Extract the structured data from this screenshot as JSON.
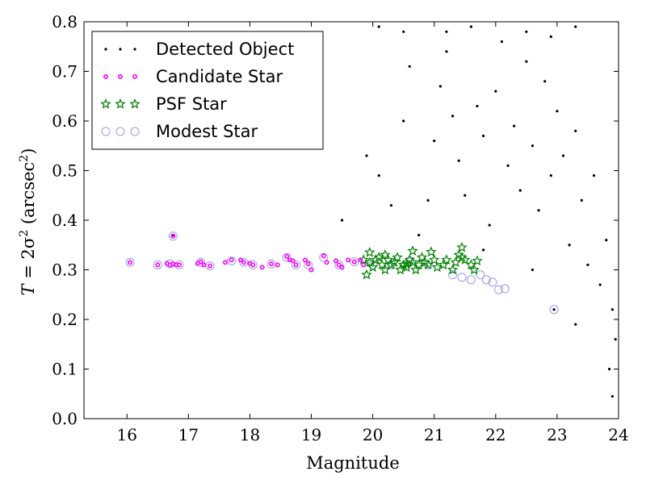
{
  "chart_data": {
    "type": "scatter",
    "xlabel": "Magnitude",
    "ylabel_main": "T",
    "ylabel_eq": " = 2σ",
    "ylabel_sup": "2",
    "ylabel_unit_open": " (arcsec",
    "ylabel_unit_sup": "2",
    "ylabel_unit_close": ")",
    "xlim": [
      15.3,
      24
    ],
    "ylim": [
      0.0,
      0.8
    ],
    "xticks": [
      16,
      17,
      18,
      19,
      20,
      21,
      22,
      23,
      24
    ],
    "yticks": [
      0.0,
      0.1,
      0.2,
      0.3,
      0.4,
      0.5,
      0.6,
      0.7,
      0.8
    ],
    "xtick_labels": [
      "16",
      "17",
      "18",
      "19",
      "20",
      "21",
      "22",
      "23",
      "24"
    ],
    "ytick_labels": [
      "0.0",
      "0.1",
      "0.2",
      "0.3",
      "0.4",
      "0.5",
      "0.6",
      "0.7",
      "0.8"
    ],
    "grid": false,
    "legend_position": "top-left",
    "series": [
      {
        "name": "Detected Object",
        "marker": "dot",
        "color": "#000000",
        "points": [
          [
            16.75,
            0.37
          ],
          [
            19.5,
            0.4
          ],
          [
            20.5,
            0.6
          ],
          [
            19.9,
            0.53
          ],
          [
            20.1,
            0.49
          ],
          [
            20.3,
            0.43
          ],
          [
            20.6,
            0.71
          ],
          [
            20.9,
            0.44
          ],
          [
            21.0,
            0.56
          ],
          [
            21.1,
            0.67
          ],
          [
            21.2,
            0.74
          ],
          [
            21.3,
            0.61
          ],
          [
            21.4,
            0.52
          ],
          [
            21.5,
            0.45
          ],
          [
            21.6,
            0.79
          ],
          [
            21.7,
            0.63
          ],
          [
            21.8,
            0.57
          ],
          [
            21.9,
            0.39
          ],
          [
            22.0,
            0.66
          ],
          [
            22.1,
            0.76
          ],
          [
            22.2,
            0.51
          ],
          [
            22.3,
            0.59
          ],
          [
            22.4,
            0.46
          ],
          [
            22.5,
            0.72
          ],
          [
            22.6,
            0.55
          ],
          [
            22.7,
            0.42
          ],
          [
            22.8,
            0.68
          ],
          [
            22.9,
            0.49
          ],
          [
            23.0,
            0.62
          ],
          [
            23.1,
            0.53
          ],
          [
            23.2,
            0.35
          ],
          [
            23.3,
            0.58
          ],
          [
            23.4,
            0.44
          ],
          [
            23.5,
            0.31
          ],
          [
            23.6,
            0.49
          ],
          [
            23.7,
            0.27
          ],
          [
            23.8,
            0.36
          ],
          [
            23.9,
            0.22
          ],
          [
            23.85,
            0.1
          ],
          [
            23.9,
            0.045
          ],
          [
            23.95,
            0.16
          ],
          [
            20.75,
            0.37
          ],
          [
            21.8,
            0.34
          ],
          [
            22.6,
            0.3
          ],
          [
            23.3,
            0.19
          ],
          [
            22.95,
            0.22
          ],
          [
            20.1,
            0.79
          ],
          [
            20.5,
            0.78
          ],
          [
            21.2,
            0.78
          ],
          [
            22.5,
            0.78
          ],
          [
            22.9,
            0.77
          ],
          [
            23.3,
            0.79
          ]
        ]
      },
      {
        "name": "Candidate Star",
        "marker": "circle",
        "color": "#ff00ff",
        "points": [
          [
            16.05,
            0.315
          ],
          [
            16.5,
            0.31
          ],
          [
            16.65,
            0.313
          ],
          [
            16.7,
            0.31
          ],
          [
            16.75,
            0.312
          ],
          [
            16.8,
            0.31
          ],
          [
            16.85,
            0.31
          ],
          [
            17.15,
            0.313
          ],
          [
            17.2,
            0.316
          ],
          [
            17.25,
            0.31
          ],
          [
            17.35,
            0.308
          ],
          [
            17.6,
            0.315
          ],
          [
            17.7,
            0.32
          ],
          [
            17.85,
            0.32
          ],
          [
            17.9,
            0.315
          ],
          [
            18.0,
            0.313
          ],
          [
            18.05,
            0.31
          ],
          [
            18.2,
            0.305
          ],
          [
            18.35,
            0.312
          ],
          [
            18.45,
            0.31
          ],
          [
            18.6,
            0.327
          ],
          [
            18.65,
            0.32
          ],
          [
            18.7,
            0.318
          ],
          [
            18.75,
            0.31
          ],
          [
            18.9,
            0.32
          ],
          [
            18.95,
            0.312
          ],
          [
            19.0,
            0.3
          ],
          [
            19.2,
            0.328
          ],
          [
            19.25,
            0.315
          ],
          [
            19.4,
            0.318
          ],
          [
            19.45,
            0.31
          ],
          [
            19.5,
            0.305
          ],
          [
            19.6,
            0.32
          ],
          [
            19.7,
            0.316
          ],
          [
            19.8,
            0.32
          ],
          [
            19.85,
            0.31
          ],
          [
            16.75,
            0.368
          ]
        ]
      },
      {
        "name": "PSF Star",
        "marker": "star",
        "color": "#008000",
        "points": [
          [
            19.85,
            0.32
          ],
          [
            19.9,
            0.29
          ],
          [
            19.95,
            0.315
          ],
          [
            20.0,
            0.305
          ],
          [
            20.05,
            0.32
          ],
          [
            20.1,
            0.325
          ],
          [
            20.15,
            0.31
          ],
          [
            20.2,
            0.3
          ],
          [
            20.25,
            0.32
          ],
          [
            20.3,
            0.31
          ],
          [
            20.35,
            0.315
          ],
          [
            20.4,
            0.325
          ],
          [
            20.45,
            0.3
          ],
          [
            20.5,
            0.31
          ],
          [
            20.55,
            0.305
          ],
          [
            20.6,
            0.32
          ],
          [
            20.65,
            0.315
          ],
          [
            20.7,
            0.3
          ],
          [
            20.75,
            0.31
          ],
          [
            20.8,
            0.325
          ],
          [
            20.85,
            0.315
          ],
          [
            20.9,
            0.31
          ],
          [
            20.95,
            0.336
          ],
          [
            21.0,
            0.32
          ],
          [
            21.05,
            0.305
          ],
          [
            21.15,
            0.31
          ],
          [
            21.2,
            0.32
          ],
          [
            21.3,
            0.3
          ],
          [
            21.35,
            0.315
          ],
          [
            21.4,
            0.33
          ],
          [
            21.45,
            0.345
          ],
          [
            21.5,
            0.32
          ],
          [
            21.6,
            0.31
          ],
          [
            21.65,
            0.3
          ],
          [
            21.7,
            0.318
          ],
          [
            19.95,
            0.335
          ],
          [
            20.65,
            0.338
          ],
          [
            21.45,
            0.325
          ],
          [
            20.2,
            0.33
          ],
          [
            20.55,
            0.312
          ]
        ]
      },
      {
        "name": "Modest Star",
        "marker": "open-circle",
        "color": "#9999ee",
        "points": [
          [
            16.05,
            0.315
          ],
          [
            16.5,
            0.31
          ],
          [
            16.7,
            0.312
          ],
          [
            16.85,
            0.31
          ],
          [
            17.2,
            0.315
          ],
          [
            17.35,
            0.308
          ],
          [
            17.7,
            0.318
          ],
          [
            17.9,
            0.315
          ],
          [
            18.05,
            0.31
          ],
          [
            18.35,
            0.312
          ],
          [
            18.6,
            0.325
          ],
          [
            18.75,
            0.31
          ],
          [
            18.95,
            0.31
          ],
          [
            19.2,
            0.325
          ],
          [
            19.45,
            0.31
          ],
          [
            19.7,
            0.316
          ],
          [
            20.0,
            0.31
          ],
          [
            20.3,
            0.31
          ],
          [
            20.6,
            0.318
          ],
          [
            20.9,
            0.31
          ],
          [
            21.3,
            0.29
          ],
          [
            21.45,
            0.285
          ],
          [
            21.6,
            0.28
          ],
          [
            21.75,
            0.29
          ],
          [
            21.85,
            0.28
          ],
          [
            21.95,
            0.275
          ],
          [
            22.05,
            0.26
          ],
          [
            22.15,
            0.262
          ],
          [
            22.95,
            0.22
          ],
          [
            16.75,
            0.368
          ]
        ]
      }
    ]
  }
}
